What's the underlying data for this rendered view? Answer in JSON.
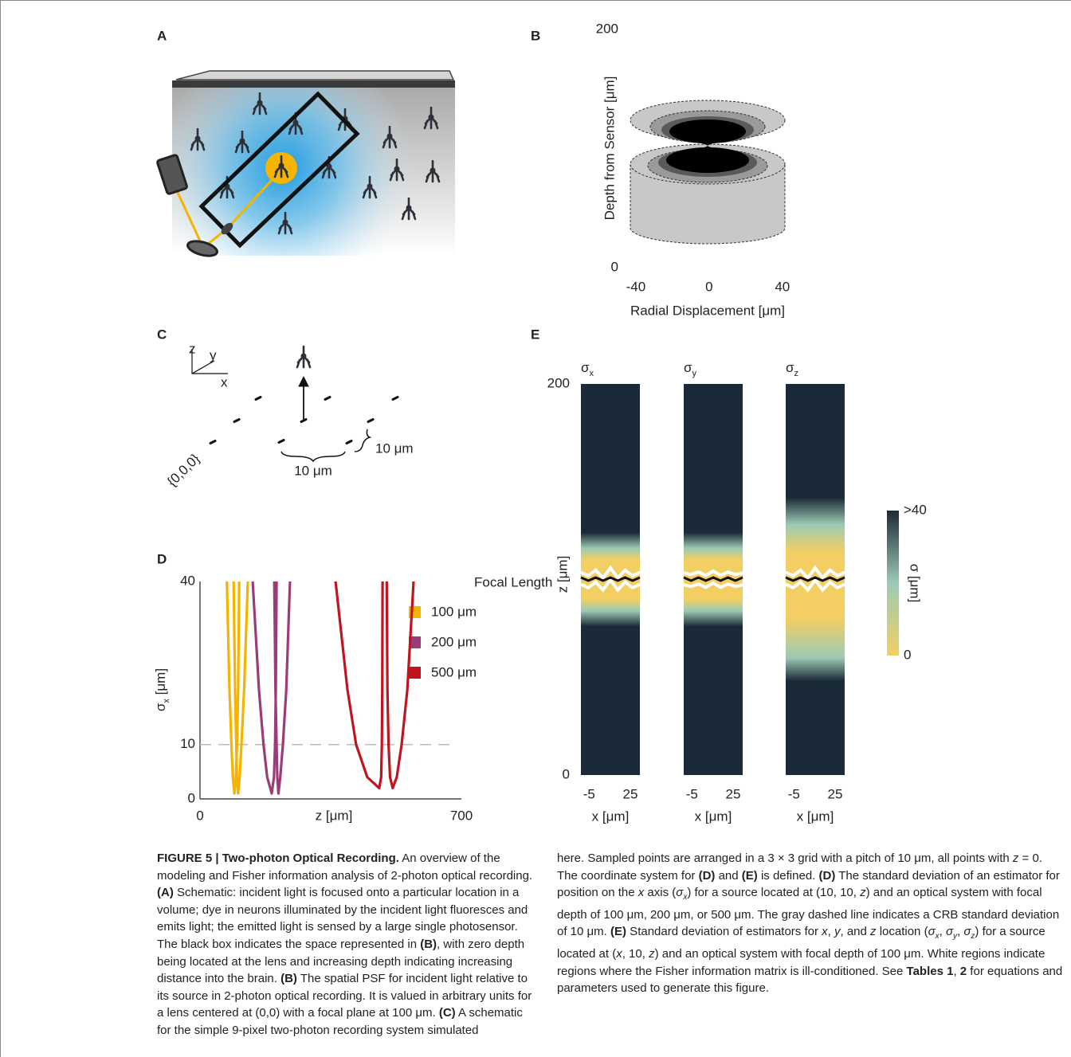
{
  "panel_labels": [
    "A",
    "B",
    "C",
    "D",
    "E"
  ],
  "panel_b": {
    "y_label": "Depth from Sensor [μm]",
    "x_label": "Radial Displacement [μm]",
    "ylim": [
      0,
      200
    ],
    "yticks": [
      200,
      0
    ],
    "xlim": [
      -43,
      44
    ],
    "xticks": [
      -40,
      0,
      40
    ]
  },
  "panel_c": {
    "axis_labels": [
      "z",
      "y",
      "x"
    ],
    "origin_label": "{0,0,0}",
    "pitch_labels": [
      "10 μm",
      "10 μm"
    ]
  },
  "panel_d": {
    "type": "line",
    "y_label": {
      "text": "σ",
      "sub": "x",
      "rest": " [μm]"
    },
    "x_label": "z [μm]",
    "xlim": [
      0,
      700
    ],
    "xticks": [
      0,
      700
    ],
    "ylim": [
      0,
      40
    ],
    "yticks": [
      40,
      10,
      0
    ],
    "reference_line": 10,
    "legend_title": "Focal Length",
    "series": [
      {
        "name": "100 μm",
        "color": "#f4b400",
        "x": [
          72,
          79,
          84,
          88,
          92,
          96,
          99,
          102,
          105,
          null,
          90,
          94,
          97,
          99,
          102,
          106,
          111,
          118,
          128
        ],
        "values": [
          40,
          20,
          10,
          4,
          1,
          4,
          10,
          20,
          40,
          null,
          40,
          20,
          10,
          4,
          1,
          4,
          10,
          20,
          40
        ]
      },
      {
        "name": "200 μm",
        "color": "#9b3c78",
        "x": [
          141,
          158,
          170,
          180,
          192,
          198,
          201,
          203,
          205,
          null,
          199,
          202,
          205,
          207,
          210,
          215,
          222,
          231,
          241
        ],
        "values": [
          40,
          20,
          10,
          4,
          1,
          4,
          10,
          20,
          40,
          null,
          40,
          20,
          10,
          4,
          1,
          4,
          10,
          20,
          40
        ]
      },
      {
        "name": "500 μm",
        "color": "#c0141e",
        "x": [
          363,
          395,
          418,
          448,
          480,
          485,
          487,
          488,
          489,
          null,
          500,
          502,
          505,
          509,
          516,
          527,
          540,
          555,
          572
        ],
        "values": [
          40,
          20,
          10,
          4,
          2,
          4,
          10,
          20,
          40,
          null,
          40,
          20,
          10,
          4,
          2,
          4,
          10,
          20,
          40
        ]
      }
    ]
  },
  "panel_e": {
    "titles": [
      {
        "text": "σ",
        "sub": "x"
      },
      {
        "text": "σ",
        "sub": "y"
      },
      {
        "text": "σ",
        "sub": "z"
      }
    ],
    "y_label": "z [μm]",
    "ylim": [
      0,
      200
    ],
    "yticks": [
      200,
      0
    ],
    "x_label": "x [μm]",
    "xlim": [
      -11,
      32
    ],
    "xticks": [
      -5,
      25
    ],
    "colorbar": {
      "label": "σ [μm]",
      "ticks": [
        {
          "value": 40,
          "label": ">40"
        },
        0
      ],
      "colors": [
        "#f3cf63",
        "#9ccab5",
        "#1b2a38"
      ]
    }
  },
  "caption": {
    "columns": [
      [
        {
          "text": "FIGURE 5 | Two-photon Optical Recording.",
          "bold": true
        },
        {
          "text": " An overview of the modeling and Fisher information analysis of 2-photon optical recording. "
        },
        {
          "text": "(A)",
          "bold": true
        },
        {
          "text": " Schematic: incident light is focused onto a particular location in a volume; dye in neurons illuminated by the incident light fluoresces and emits light; the emitted light is sensed by a large single photosensor. The black box indicates the space represented in "
        },
        {
          "text": "(B)",
          "bold": true
        },
        {
          "text": ", with zero depth being located at the lens and increasing depth indicating increasing distance into the brain. "
        },
        {
          "text": "(B)",
          "bold": true
        },
        {
          "text": " The spatial PSF for incident light relative to its source in 2-photon optical recording. It is valued in arbitrary units for a lens centered at (0,0) with a focal plane at 100 μm. "
        },
        {
          "text": "(C)",
          "bold": true
        },
        {
          "text": " A schematic for the simple 9-pixel two-photon recording system simulated"
        }
      ],
      [
        {
          "text": "here. Sampled points are arranged in a 3 × 3 grid with a pitch of 10 μm, all points with "
        },
        {
          "text": "z",
          "italic": true
        },
        {
          "text": " = 0. The coordinate system for "
        },
        {
          "text": "(D)",
          "bold": true
        },
        {
          "text": " and "
        },
        {
          "text": "(E)",
          "bold": true
        },
        {
          "text": " is defined. "
        },
        {
          "text": "(D)",
          "bold": true
        },
        {
          "text": " The standard deviation of an estimator for position on the "
        },
        {
          "text": "x",
          "italic": true
        },
        {
          "text": " axis ("
        },
        {
          "text": "σ",
          "sub": "x",
          "italic": true
        },
        {
          "text": ") for a source located at (10, 10, "
        },
        {
          "text": "z",
          "italic": true
        },
        {
          "text": ") and an optical system with focal depth of 100 μm, 200 μm, or 500 μm. The gray dashed line indicates a CRB standard deviation of 10 μm. "
        },
        {
          "text": "(E)",
          "bold": true
        },
        {
          "text": " Standard deviation of estimators for "
        },
        {
          "text": "x",
          "italic": true
        },
        {
          "text": ", "
        },
        {
          "text": "y",
          "italic": true
        },
        {
          "text": ", and "
        },
        {
          "text": "z",
          "italic": true
        },
        {
          "text": " location ("
        },
        {
          "text": "σ",
          "sub": "x",
          "italic": true
        },
        {
          "text": ", "
        },
        {
          "text": "σ",
          "sub": "y",
          "italic": true
        },
        {
          "text": ", "
        },
        {
          "text": "σ",
          "sub": "z",
          "italic": true
        },
        {
          "text": ") for a source located at ("
        },
        {
          "text": "x",
          "italic": true
        },
        {
          "text": ", 10, "
        },
        {
          "text": "z",
          "italic": true
        },
        {
          "text": ") and an optical system with focal depth of 100 μm. White regions indicate regions where the Fisher information matrix is ill-conditioned. See "
        },
        {
          "text": "Tables 1",
          "bold": true
        },
        {
          "text": ", "
        },
        {
          "text": "2",
          "bold": true
        },
        {
          "text": " for equations and parameters used to generate this figure."
        }
      ]
    ]
  }
}
